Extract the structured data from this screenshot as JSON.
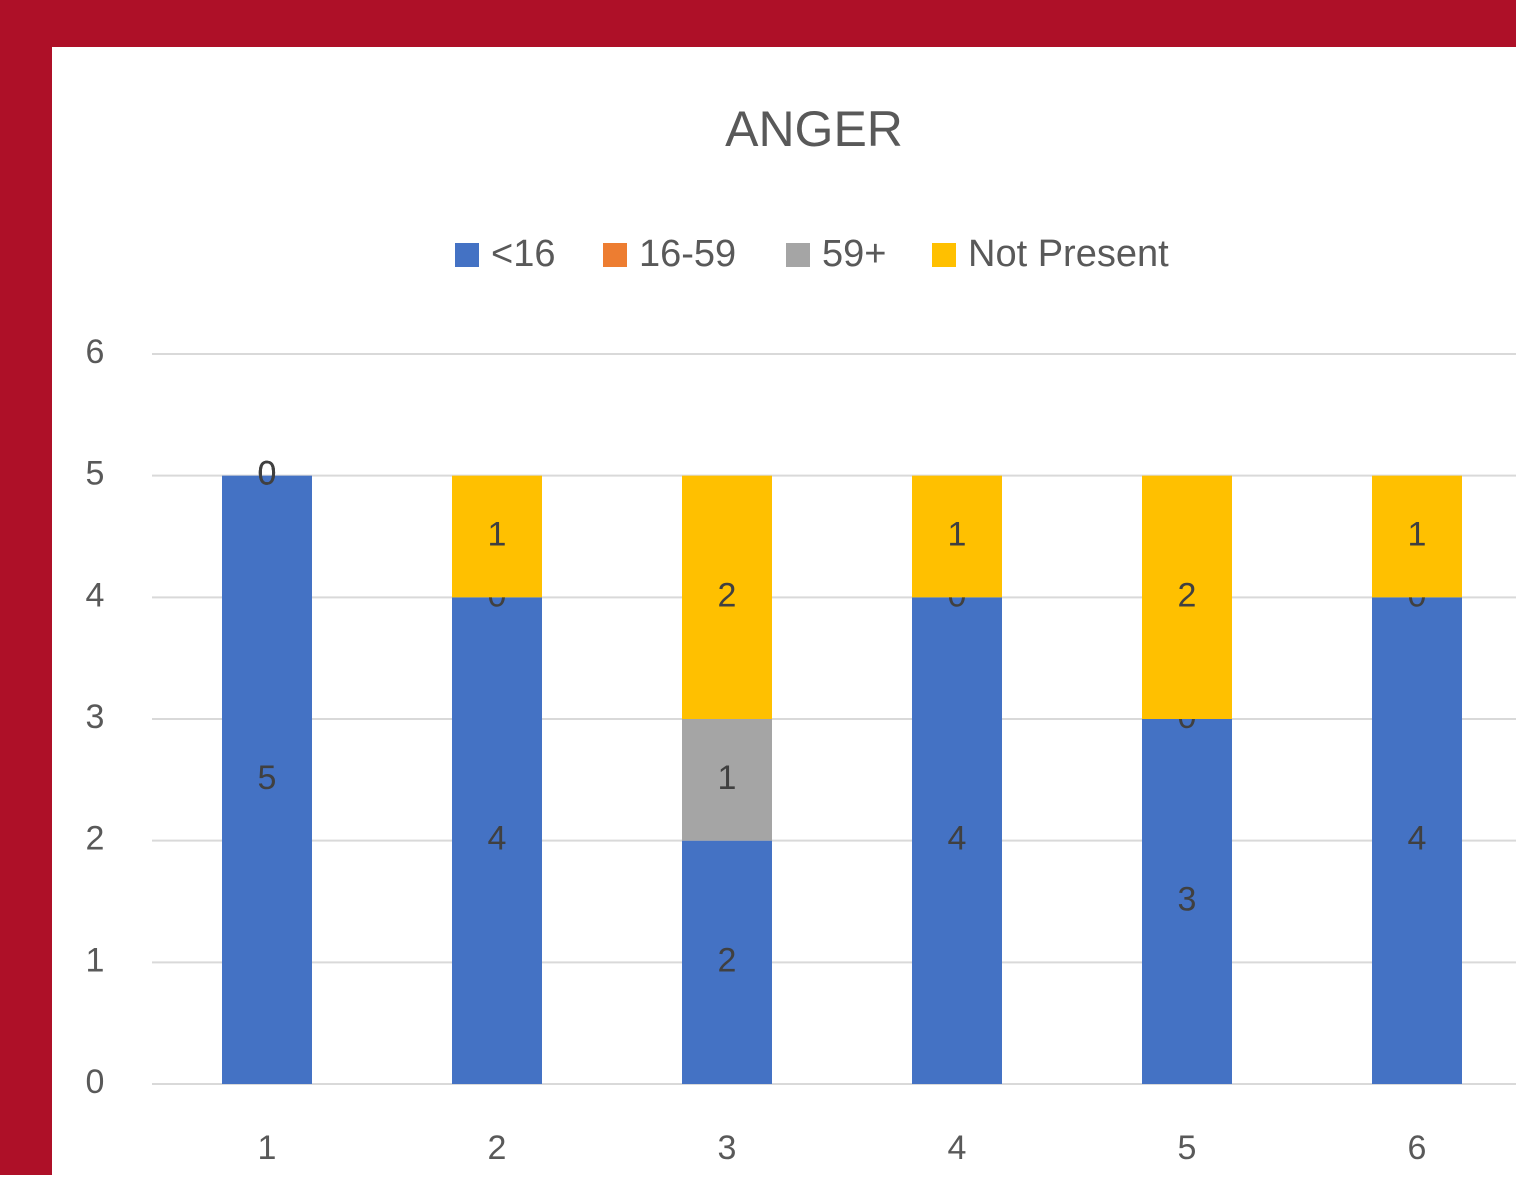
{
  "chart_data": {
    "type": "stacked_bar",
    "title": "ANGER",
    "categories": [
      "1",
      "2",
      "3",
      "4",
      "5",
      "6"
    ],
    "series": [
      {
        "name": "<16",
        "color": "#4472c4",
        "values": [
          5,
          4,
          2,
          4,
          3,
          4
        ]
      },
      {
        "name": "16-59",
        "color": "#ed7d31",
        "values": [
          0,
          0,
          null,
          0,
          0,
          0
        ]
      },
      {
        "name": "59+",
        "color": "#a5a5a5",
        "values": [
          0,
          null,
          1,
          null,
          null,
          null
        ]
      },
      {
        "name": "Not Present",
        "color": "#ffc000",
        "values": [
          0,
          1,
          2,
          1,
          2,
          1
        ]
      }
    ],
    "ylim": [
      0,
      6
    ],
    "yticks": [
      0,
      1,
      2,
      3,
      4,
      5,
      6
    ],
    "grid": true,
    "legend": "top"
  }
}
